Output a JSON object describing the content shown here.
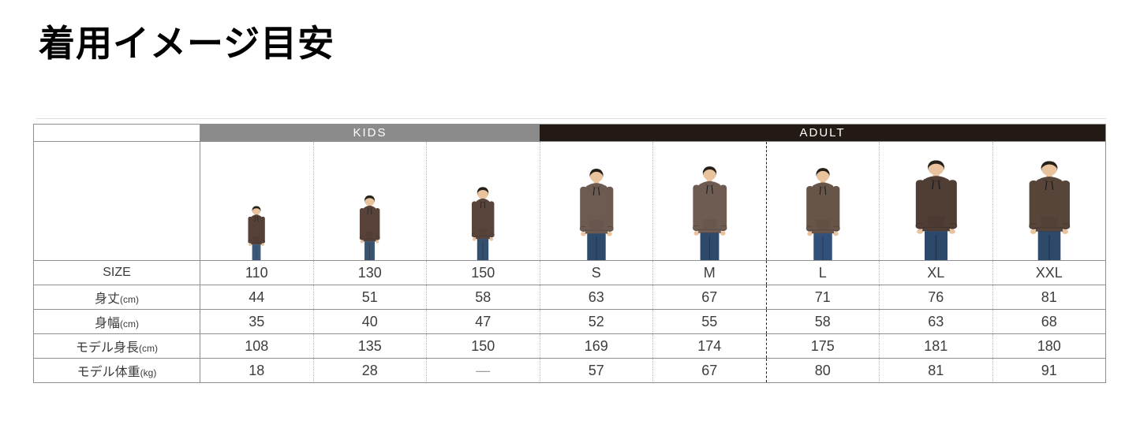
{
  "page": {
    "title": "着用イメージ目安"
  },
  "table": {
    "groups": [
      {
        "label": "KIDS",
        "bg": "#8b8b8b",
        "span": 3
      },
      {
        "label": "ADULT",
        "bg": "#231a15",
        "span": 5
      }
    ],
    "column_sizes": [
      "110",
      "130",
      "150",
      "S",
      "M",
      "L",
      "XL",
      "XXL"
    ],
    "dashed_divider_before": "L",
    "rows": [
      {
        "label": "SIZE",
        "unit": "",
        "values": [
          "110",
          "130",
          "150",
          "S",
          "M",
          "L",
          "XL",
          "XXL"
        ]
      },
      {
        "label": "身丈",
        "unit": "(cm)",
        "values": [
          "44",
          "51",
          "58",
          "63",
          "67",
          "71",
          "76",
          "81"
        ]
      },
      {
        "label": "身幅",
        "unit": "(cm)",
        "values": [
          "35",
          "40",
          "47",
          "52",
          "55",
          "58",
          "63",
          "68"
        ]
      },
      {
        "label": "モデル身長",
        "unit": "(cm)",
        "values": [
          "108",
          "135",
          "150",
          "169",
          "174",
          "175",
          "181",
          "180"
        ]
      },
      {
        "label": "モデル体重",
        "unit": "(kg)",
        "values": [
          "18",
          "28",
          "—",
          "57",
          "67",
          "80",
          "81",
          "91"
        ]
      }
    ],
    "models": [
      {
        "size": "110",
        "figure_height": 71,
        "build": "kid",
        "hoodie": "#564138",
        "jeans": "#3d5878"
      },
      {
        "size": "130",
        "figure_height": 85,
        "build": "kid",
        "hoodie": "#584239",
        "jeans": "#3a546f"
      },
      {
        "size": "150",
        "figure_height": 96,
        "build": "kid",
        "hoodie": "#5a453c",
        "jeans": "#35506e"
      },
      {
        "size": "S",
        "figure_height": 120,
        "build": "adult",
        "hoodie": "#6d5b52",
        "jeans": "#2e4a6b"
      },
      {
        "size": "M",
        "figure_height": 123,
        "build": "adult",
        "hoodie": "#6e5c52",
        "jeans": "#2e4a6b"
      },
      {
        "size": "L",
        "figure_height": 121,
        "build": "adult",
        "hoodie": "#685549",
        "jeans": "#31517a"
      },
      {
        "size": "XL",
        "figure_height": 131,
        "build": "big",
        "hoodie": "#503e35",
        "jeans": "#2c486b"
      },
      {
        "size": "XXL",
        "figure_height": 130,
        "build": "big",
        "hoodie": "#574539",
        "jeans": "#2e4a6b"
      }
    ],
    "model_style": {
      "skin": "#e9c29e",
      "hair": "#262019"
    },
    "border_colors": {
      "grid": "#8f8f8f",
      "dotted": "#b8b8b8",
      "dashed": "#1f1f1f"
    }
  }
}
